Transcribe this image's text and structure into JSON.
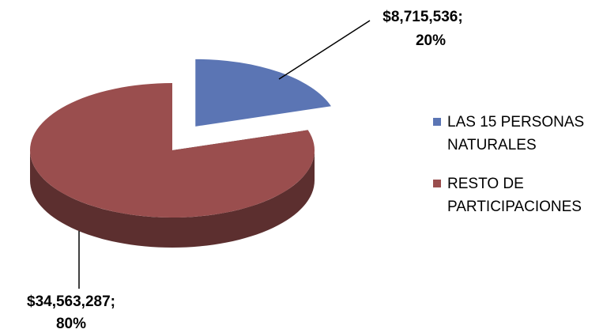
{
  "chart_data": {
    "type": "pie3d",
    "series": [
      {
        "name": "LAS 15 PERSONAS NATURALES",
        "color": "#5b75b4"
      },
      {
        "name": "RESTO DE PARTICIPACIONES",
        "color": "#9a4e4e"
      }
    ],
    "values": [
      8715536,
      34563287
    ],
    "value_labels": [
      "$8,715,536;",
      "$34,563,287;"
    ],
    "percent_labels": [
      "20%",
      "80%"
    ],
    "exploded": [
      true,
      false
    ],
    "legend": "right"
  }
}
